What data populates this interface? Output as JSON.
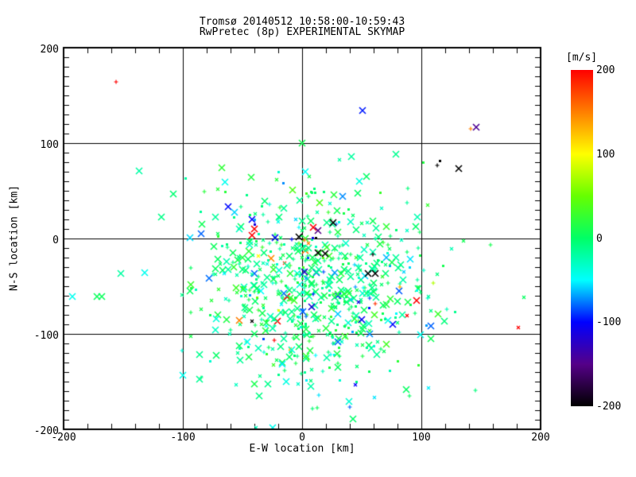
{
  "title": {
    "line1": "Tromsø 20140512 10:58:00-10:59:43",
    "line2": "RwPretec (8p) EXPERIMENTAL SKYMAP"
  },
  "plot": {
    "xlabel": "E-W location [km]",
    "ylabel": "N-S location [km]",
    "xlim": [
      -200,
      200
    ],
    "ylim": [
      -200,
      200
    ],
    "xticks": [
      -200,
      -100,
      0,
      100,
      200
    ],
    "yticks": [
      200,
      100,
      0,
      -100,
      -200
    ],
    "grid_interval_km": 100,
    "minor_tick_x_km": 20,
    "minor_tick_y_km": 10,
    "axis_color": "#000000",
    "background": "#ffffff"
  },
  "colorbar": {
    "label": "[m/s]",
    "ticks": [
      200,
      100,
      0,
      -100,
      -200
    ],
    "vmin": -200,
    "vmax": 200
  },
  "chart_data": {
    "type": "scatter",
    "title": "Tromsø 20140512 10:58:00-10:59:43 / RwPretec (8p) EXPERIMENTAL SKYMAP",
    "xlabel": "E-W location [km]",
    "ylabel": "N-S location [km]",
    "xlim": [
      -200,
      200
    ],
    "ylim": [
      -200,
      200
    ],
    "grid": "solid black lines every 100 km, minor ticks 20 km (x) / 10 km (y)",
    "legend_position": "colorbar right",
    "color_scale": {
      "units": "m/s",
      "min": -200,
      "max": 200,
      "anchors": [
        [
          200,
          "#ff0000"
        ],
        [
          150,
          "#ff7f00"
        ],
        [
          100,
          "#ffff00"
        ],
        [
          50,
          "#66ff00"
        ],
        [
          0,
          "#00ff66"
        ],
        [
          -50,
          "#00ffff"
        ],
        [
          -100,
          "#0000ff"
        ],
        [
          -150,
          "#550088"
        ],
        [
          -200,
          "#000000"
        ]
      ]
    },
    "points_format": "[x_km, y_km, velocity_mps, size(0=small,1=large_X)]",
    "notable_points": [
      [
        -156,
        164,
        200,
        0
      ],
      [
        51,
        134,
        -95,
        1
      ],
      [
        146,
        117,
        -145,
        1
      ],
      [
        141,
        115,
        150,
        0
      ],
      [
        131,
        73,
        -200,
        1
      ],
      [
        115,
        82,
        -200,
        0
      ],
      [
        113,
        77,
        -200,
        0
      ],
      [
        -85,
        5,
        -80,
        1
      ],
      [
        -132,
        -36,
        -45,
        1
      ],
      [
        -193,
        -61,
        -45,
        1
      ],
      [
        -172,
        -61,
        5,
        1
      ],
      [
        -168,
        -61,
        5,
        1
      ],
      [
        -94,
        -55,
        5,
        1
      ],
      [
        -74,
        -8,
        5,
        1
      ],
      [
        0,
        100,
        10,
        1
      ],
      [
        -42,
        20,
        -100,
        1
      ],
      [
        -40,
        10,
        200,
        1
      ],
      [
        -42,
        3,
        200,
        1
      ],
      [
        9,
        12,
        200,
        1
      ],
      [
        13,
        8,
        -150,
        1
      ],
      [
        -23,
        1,
        -100,
        1
      ],
      [
        -3,
        2,
        -200,
        1
      ],
      [
        26,
        17,
        -200,
        1
      ],
      [
        11,
        1,
        -200,
        0
      ],
      [
        2,
        -2,
        150,
        0
      ],
      [
        5,
        -5,
        150,
        0
      ],
      [
        118,
        -28,
        10,
        0
      ],
      [
        158,
        -7,
        10,
        0
      ],
      [
        181,
        -93,
        200,
        0
      ],
      [
        96,
        -65,
        200,
        1
      ],
      [
        54,
        65,
        0,
        1
      ],
      [
        48,
        60,
        -40,
        1
      ],
      [
        -65,
        59,
        -45,
        1
      ],
      [
        -82,
        49,
        20,
        0
      ],
      [
        -71,
        52,
        20,
        0
      ],
      [
        -65,
        49,
        20,
        0
      ],
      [
        -53,
        -86,
        150,
        1
      ],
      [
        -42,
        -87,
        -200,
        0
      ],
      [
        -100,
        -143,
        -45,
        1
      ],
      [
        -25,
        -198,
        -45,
        1
      ],
      [
        55,
        -37,
        -200,
        1
      ],
      [
        61,
        -37,
        -200,
        1
      ],
      [
        59,
        -17,
        -200,
        0
      ],
      [
        99,
        -101,
        -45,
        1
      ],
      [
        13,
        -15,
        -200,
        1
      ],
      [
        19,
        -16,
        -200,
        1
      ],
      [
        -37,
        -18,
        100,
        0
      ],
      [
        -20,
        -75,
        90,
        0
      ]
    ],
    "cluster": {
      "description": "dense cloud of meteor/radar echoes centered just south of origin",
      "count": 680,
      "center": [
        8,
        -52
      ],
      "sigma": [
        50,
        52
      ],
      "v_main": {
        "mean": -5,
        "sigma": 20,
        "fraction": 0.83
      },
      "v_tail": {
        "mean": -55,
        "sigma": 35,
        "fraction": 0.15
      },
      "v_hot": {
        "mean": 130,
        "sigma": 50,
        "fraction": 0.02
      },
      "large_fraction": 0.38,
      "seed": 20140512
    }
  }
}
